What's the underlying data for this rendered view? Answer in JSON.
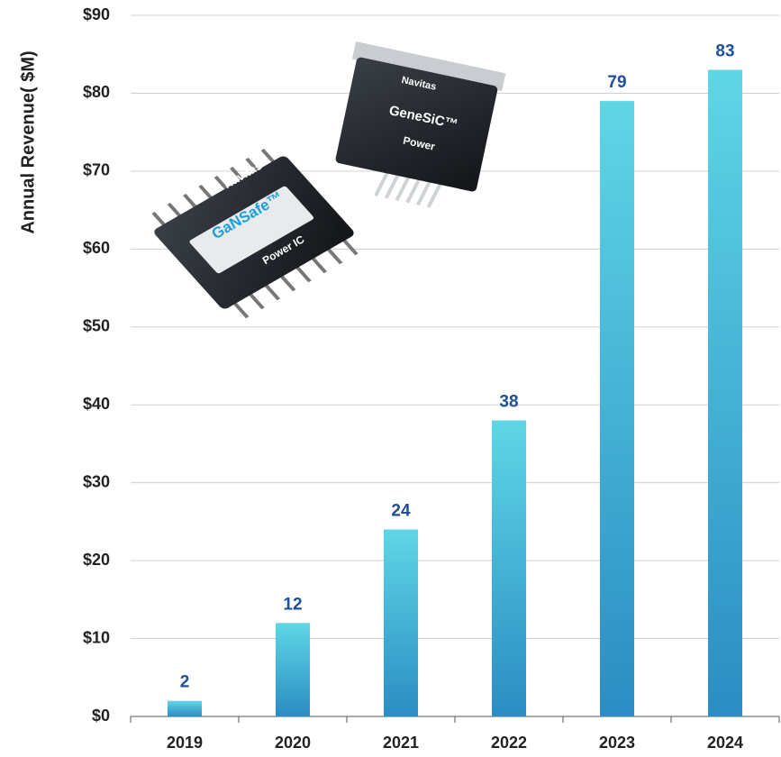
{
  "chart_data": {
    "type": "bar",
    "y_label": "Annual Revenue( $M)",
    "categories": [
      "2019",
      "2020",
      "2021",
      "2022",
      "2023",
      "2024"
    ],
    "values": [
      2,
      12,
      24,
      38,
      79,
      83
    ],
    "gradient": [
      "#5fd6e6",
      "#2b8dc3"
    ],
    "ylim": [
      0,
      90
    ],
    "yticks": [
      {
        "value": 0,
        "label": "$0"
      },
      {
        "value": 10,
        "label": "$10"
      },
      {
        "value": 20,
        "label": "$20"
      },
      {
        "value": 30,
        "label": "$30"
      },
      {
        "value": 40,
        "label": "$40"
      },
      {
        "value": 50,
        "label": "$50"
      },
      {
        "value": 60,
        "label": "$60"
      },
      {
        "value": 70,
        "label": "$70"
      },
      {
        "value": 80,
        "label": "$80"
      },
      {
        "value": 90,
        "label": "$90"
      }
    ],
    "grid": true,
    "annotations": [
      "Navitas",
      "GaNSafe™",
      "Power IC",
      "Navitas",
      "GeneSiC™",
      "Power"
    ]
  }
}
